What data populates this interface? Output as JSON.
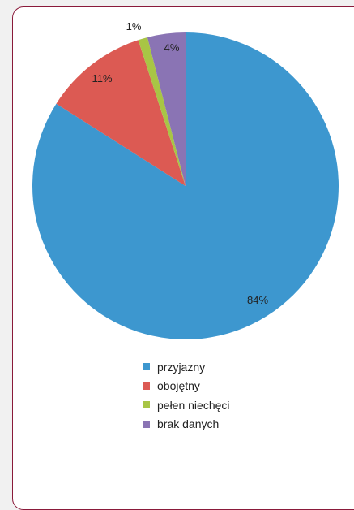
{
  "chart_data": {
    "type": "pie",
    "categories": [
      "przyjazny",
      "obojętny",
      "pełen niechęci",
      "brak danych"
    ],
    "values": [
      84,
      11,
      1,
      4
    ],
    "value_labels": [
      "84%",
      "11%",
      "1%",
      "4%"
    ],
    "colors": [
      "#3d97cf",
      "#dc5a53",
      "#a8c545",
      "#8a74b4"
    ],
    "title": "",
    "start": "12 o'clock",
    "direction": "clockwise",
    "legend_placement": "bottom"
  }
}
